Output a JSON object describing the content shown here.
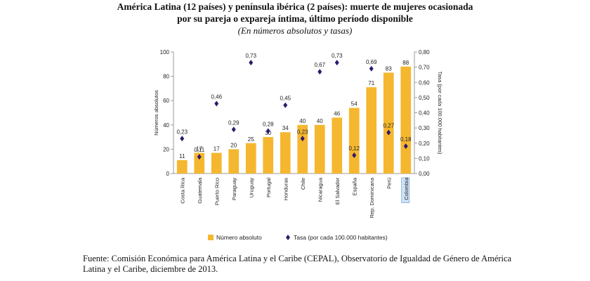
{
  "chart_data": {
    "type": "bar",
    "title_line1": "América Latina (12 países) y península ibérica (2 países): muerte de mujeres ocasionada",
    "title_line2": "por su pareja o expareja íntima, último período disponible",
    "subtitle": "(En números absolutos y tasas)",
    "categories": [
      "Costa Rica",
      "Guatemala",
      "Puerto Rico",
      "Paraguay",
      "Uruguay",
      "Portugal",
      "Honduras",
      "Chile",
      "Nicaragua",
      "El Salvador",
      "España",
      "Rep. Dominicana",
      "Perú",
      "Colombia"
    ],
    "highlighted_category": "Colombia",
    "series": [
      {
        "name": "Número absoluto",
        "kind": "bar",
        "axis": "left",
        "color": "#F5B72F",
        "values": [
          11,
          17,
          17,
          20,
          25,
          30,
          34,
          40,
          40,
          46,
          54,
          71,
          83,
          88
        ]
      },
      {
        "name": "Tasa (por cada 100.000 habitantes)",
        "kind": "marker",
        "axis": "right",
        "color": "#2E1A6E",
        "values": [
          0.23,
          0.11,
          0.46,
          0.29,
          0.73,
          0.28,
          0.45,
          0.23,
          0.67,
          0.73,
          0.12,
          0.69,
          0.27,
          0.18
        ]
      }
    ],
    "bar_labels": [
      "11",
      "17",
      "17",
      "20",
      "25",
      "30",
      "34",
      "40",
      "40",
      "46",
      "54",
      "71",
      "83",
      "88"
    ],
    "rate_labels": [
      "0,23",
      "0,11",
      "0,46",
      "0,29",
      "0,73",
      "0,28",
      "0,45",
      "0,23",
      "0,67",
      "0,73",
      "0,12",
      "0,69",
      "0,27",
      "0,18"
    ],
    "ylabel_left": "Números absolutos",
    "ylabel_right": "Tasa (por cada 100.000 habitantes)",
    "ylim_left": [
      0,
      100
    ],
    "ylim_right": [
      0,
      0.8
    ],
    "left_ticks": [
      0,
      20,
      40,
      60,
      80,
      100
    ],
    "left_tick_labels": [
      "0",
      "20",
      "40",
      "60",
      "80",
      "100"
    ],
    "right_ticks": [
      0,
      0.1,
      0.2,
      0.3,
      0.4,
      0.5,
      0.6,
      0.7,
      0.8
    ],
    "right_tick_labels": [
      "0,00",
      "0,10",
      "0,20",
      "0,30",
      "0,40",
      "0,50",
      "0,60",
      "0,70",
      "0,80"
    ],
    "legend": {
      "position": "bottom",
      "bar_label": "Número absoluto",
      "marker_label": "Tasa (por cada 100.000 habitantes)"
    },
    "grid": false
  },
  "source_text": "Fuente: Comisión Económica para América Latina y el Caribe (CEPAL), Observatorio de Igualdad de Género de América Latina y el Caribe, diciembre de 2013."
}
